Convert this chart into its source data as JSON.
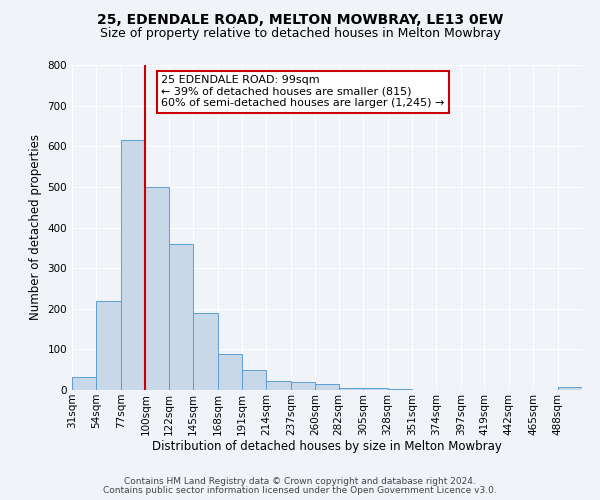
{
  "title": "25, EDENDALE ROAD, MELTON MOWBRAY, LE13 0EW",
  "subtitle": "Size of property relative to detached houses in Melton Mowbray",
  "xlabel": "Distribution of detached houses by size in Melton Mowbray",
  "ylabel": "Number of detached properties",
  "bin_labels": [
    "31sqm",
    "54sqm",
    "77sqm",
    "100sqm",
    "122sqm",
    "145sqm",
    "168sqm",
    "191sqm",
    "214sqm",
    "237sqm",
    "260sqm",
    "282sqm",
    "305sqm",
    "328sqm",
    "351sqm",
    "374sqm",
    "397sqm",
    "419sqm",
    "442sqm",
    "465sqm",
    "488sqm"
  ],
  "bar_values": [
    32,
    220,
    615,
    500,
    360,
    190,
    88,
    50,
    22,
    20,
    14,
    4,
    4,
    3,
    1,
    1,
    0,
    0,
    0,
    0,
    7
  ],
  "bin_edges": [
    31,
    54,
    77,
    100,
    122,
    145,
    168,
    191,
    214,
    237,
    260,
    282,
    305,
    328,
    351,
    374,
    397,
    419,
    442,
    465,
    488,
    511
  ],
  "bar_color": "#c8d8e8",
  "bar_edge_color": "#5a9fd4",
  "property_line_x": 100,
  "property_line_color": "#cc0000",
  "annotation_text": "25 EDENDALE ROAD: 99sqm\n← 39% of detached houses are smaller (815)\n60% of semi-detached houses are larger (1,245) →",
  "annotation_box_color": "#ffffff",
  "annotation_box_edge_color": "#cc0000",
  "ylim": [
    0,
    800
  ],
  "yticks": [
    0,
    100,
    200,
    300,
    400,
    500,
    600,
    700,
    800
  ],
  "footer_line1": "Contains HM Land Registry data © Crown copyright and database right 2024.",
  "footer_line2": "Contains public sector information licensed under the Open Government Licence v3.0.",
  "background_color": "#f0f4f8",
  "grid_color": "#ffffff",
  "title_fontsize": 10,
  "subtitle_fontsize": 9,
  "axis_fontsize": 8.5,
  "tick_fontsize": 7.5,
  "footer_fontsize": 6.5,
  "annotation_fontsize": 8
}
